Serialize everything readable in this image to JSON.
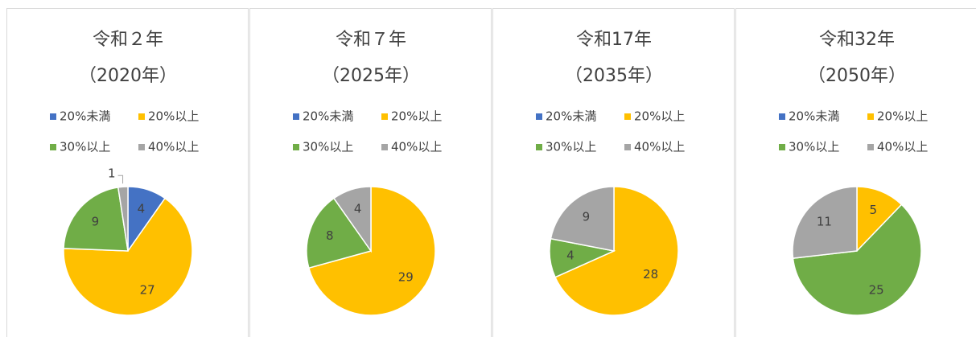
{
  "chart_data": [
    {
      "type": "pie",
      "title": "令和２年",
      "subtitle": "（2020年）",
      "categories": [
        "20%未満",
        "20%以上",
        "30%以上",
        "40%以上"
      ],
      "values": [
        4,
        27,
        9,
        1
      ],
      "colors": [
        "#4472c4",
        "#ffc000",
        "#70ad47",
        "#a5a5a5"
      ],
      "legend": "top"
    },
    {
      "type": "pie",
      "title": "令和７年",
      "subtitle": "（2025年）",
      "categories": [
        "20%未満",
        "20%以上",
        "30%以上",
        "40%以上"
      ],
      "values": [
        0,
        29,
        8,
        4
      ],
      "colors": [
        "#4472c4",
        "#ffc000",
        "#70ad47",
        "#a5a5a5"
      ],
      "legend": "top"
    },
    {
      "type": "pie",
      "title": "令和17年",
      "subtitle": "（2035年）",
      "categories": [
        "20%未満",
        "20%以上",
        "30%以上",
        "40%以上"
      ],
      "values": [
        0,
        28,
        4,
        9
      ],
      "colors": [
        "#4472c4",
        "#ffc000",
        "#70ad47",
        "#a5a5a5"
      ],
      "legend": "top"
    },
    {
      "type": "pie",
      "title": "令和32年",
      "subtitle": "（2050年）",
      "categories": [
        "20%未満",
        "20%以上",
        "30%以上",
        "40%以上"
      ],
      "values": [
        0,
        5,
        25,
        11
      ],
      "colors": [
        "#4472c4",
        "#ffc000",
        "#70ad47",
        "#a5a5a5"
      ],
      "legend": "top"
    }
  ]
}
